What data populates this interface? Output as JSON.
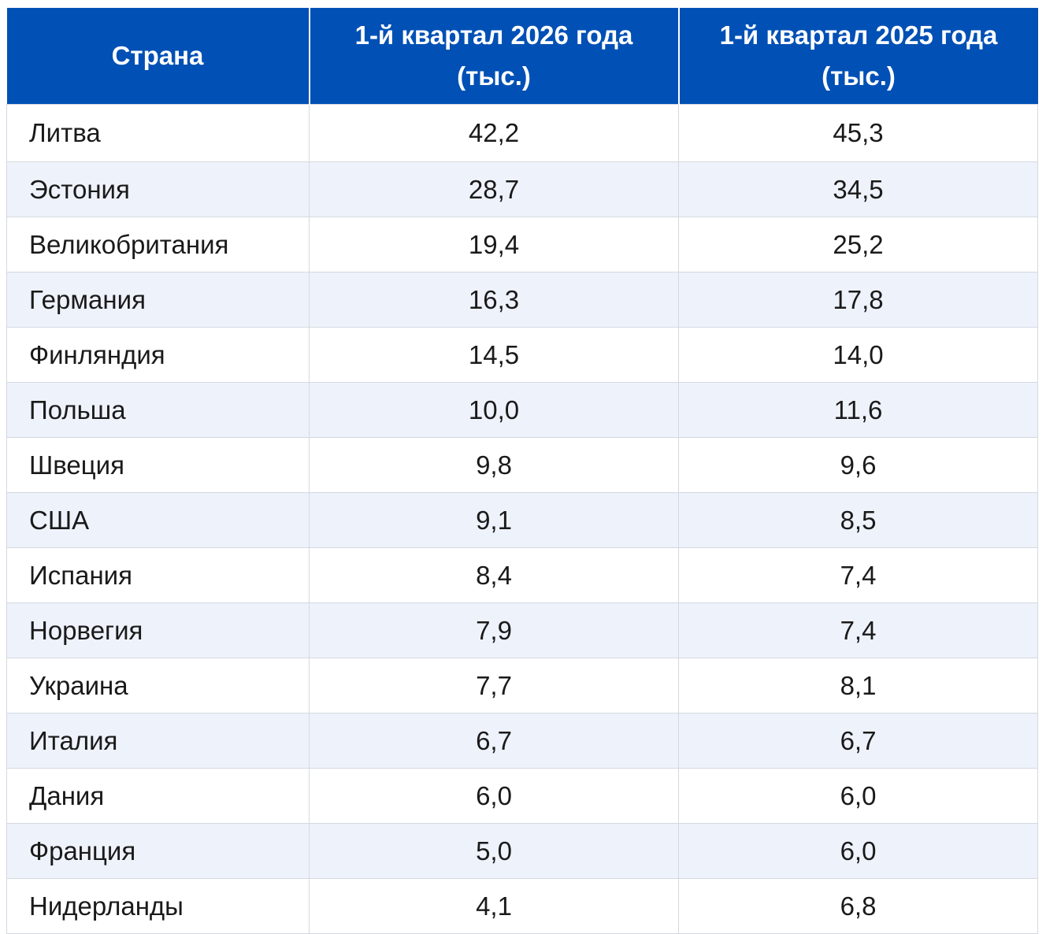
{
  "headers": {
    "country": "Страна",
    "q1_2026": "1-й квартал 2026 года (тыс.)",
    "q1_2025": "1-й квартал 2025 года (тыс.)"
  },
  "rows": [
    {
      "country": "Литва",
      "q1_2026": "42,2",
      "q1_2025": "45,3"
    },
    {
      "country": "Эстония",
      "q1_2026": "28,7",
      "q1_2025": "34,5"
    },
    {
      "country": "Великобритания",
      "q1_2026": "19,4",
      "q1_2025": "25,2"
    },
    {
      "country": "Германия",
      "q1_2026": "16,3",
      "q1_2025": "17,8"
    },
    {
      "country": "Финляндия",
      "q1_2026": "14,5",
      "q1_2025": "14,0"
    },
    {
      "country": "Польша",
      "q1_2026": "10,0",
      "q1_2025": "11,6"
    },
    {
      "country": "Швеция",
      "q1_2026": "9,8",
      "q1_2025": "9,6"
    },
    {
      "country": "США",
      "q1_2026": "9,1",
      "q1_2025": "8,5"
    },
    {
      "country": "Испания",
      "q1_2026": "8,4",
      "q1_2025": "7,4"
    },
    {
      "country": "Норвегия",
      "q1_2026": "7,9",
      "q1_2025": "7,4"
    },
    {
      "country": "Украина",
      "q1_2026": "7,7",
      "q1_2025": "8,1"
    },
    {
      "country": "Италия",
      "q1_2026": "6,7",
      "q1_2025": "6,7"
    },
    {
      "country": "Дания",
      "q1_2026": "6,0",
      "q1_2025": "6,0"
    },
    {
      "country": "Франция",
      "q1_2026": "5,0",
      "q1_2025": "6,0"
    },
    {
      "country": "Нидерланды",
      "q1_2026": "4,1",
      "q1_2025": "6,8"
    }
  ],
  "colors": {
    "header_bg": "#0050b5",
    "header_text": "#ffffff",
    "row_alt_bg": "#eef2fb",
    "border": "#d4d9e0"
  }
}
